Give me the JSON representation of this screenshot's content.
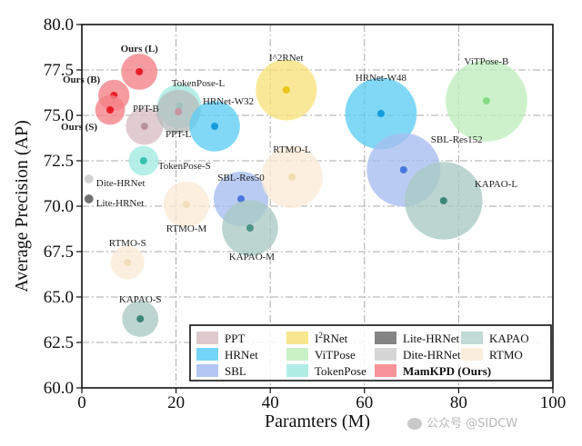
{
  "chart_data": {
    "type": "scatter",
    "subtype": "bubble",
    "title": "",
    "xlabel": "Paramters (M)",
    "ylabel": "Average Precision (AP)",
    "xlim": [
      0,
      100
    ],
    "ylim": [
      60.0,
      80.0
    ],
    "xticks": [
      "0",
      "20",
      "40",
      "60",
      "80",
      "100"
    ],
    "yticks": [
      "60.0",
      "62.5",
      "65.0",
      "67.5",
      "70.0",
      "72.5",
      "75.0",
      "77.5",
      "80.0"
    ],
    "grid": true,
    "legend_position": "lower-right",
    "legend": [
      {
        "name": "PPT",
        "color": "#d9bfc4"
      },
      {
        "name": "HRNet",
        "color": "#5ccdf3"
      },
      {
        "name": "SBL",
        "color": "#a7bdf0"
      },
      {
        "name": "I2RNet",
        "color": "#f7e27a"
      },
      {
        "name": "ViTPose",
        "color": "#bfeebd"
      },
      {
        "name": "TokenPose",
        "color": "#a2ebe1"
      },
      {
        "name": "Lite-HRNet",
        "color": "#6e6e6e"
      },
      {
        "name": "Dite-HRNet",
        "color": "#cfcfcf"
      },
      {
        "name": "MamKPD (Ours)",
        "color": "#f48087",
        "bold": true
      },
      {
        "name": "KAPAO",
        "color": "#b6d3cf"
      },
      {
        "name": "RTMO",
        "color": "#fbebd6"
      }
    ],
    "points": [
      {
        "label": "Ours (L)",
        "family": "MamKPD (Ours)",
        "x": 12.2,
        "y": 77.4,
        "size": 12,
        "color": "#f48087",
        "dot": "#e8101c",
        "bold": true
      },
      {
        "label": "Ours (B)",
        "family": "MamKPD (Ours)",
        "x": 6.8,
        "y": 76.1,
        "size": 8,
        "color": "#f48087",
        "dot": "#e8101c",
        "bold": true
      },
      {
        "label": "Ours (S)",
        "family": "MamKPD (Ours)",
        "x": 6.0,
        "y": 75.3,
        "size": 7,
        "color": "#f48087",
        "dot": "#e8101c",
        "bold": true
      },
      {
        "label": "PPT-B",
        "family": "PPT",
        "x": 13.3,
        "y": 74.4,
        "size": 13,
        "color": "#d9bfc4",
        "dot": "#b78c95"
      },
      {
        "label": "TokenPose-L",
        "family": "TokenPose",
        "x": 20.7,
        "y": 75.5,
        "size": 20,
        "color": "#a2ebe1",
        "dot": "#3ecfc0"
      },
      {
        "label": "PPT-L",
        "family": "PPT",
        "x": 20.5,
        "y": 75.2,
        "size": 20,
        "color": "#b8bdbc",
        "dot": "#c98f9b"
      },
      {
        "label": "HRNet-W32",
        "family": "HRNet",
        "x": 28.2,
        "y": 74.4,
        "size": 28,
        "color": "#5ccdf3",
        "dot": "#0a96dc"
      },
      {
        "label": "I^2RNet",
        "family": "I2RNet",
        "x": 43.4,
        "y": 76.4,
        "size": 44,
        "color": "#f7e27a",
        "dot": "#e9c20d"
      },
      {
        "label": "HRNet-W48",
        "family": "HRNet",
        "x": 63.5,
        "y": 75.1,
        "size": 64,
        "color": "#5ccdf3",
        "dot": "#0a96dc"
      },
      {
        "label": "ViTPose-B",
        "family": "ViTPose",
        "x": 85.9,
        "y": 75.8,
        "size": 86,
        "color": "#bfeebd",
        "dot": "#7fd77e"
      },
      {
        "label": "TokenPose-S",
        "family": "TokenPose",
        "x": 13.1,
        "y": 72.5,
        "size": 7,
        "color": "#a2ebe1",
        "dot": "#2bbfa8"
      },
      {
        "label": "Dite-HRNet",
        "family": "Dite-HRNet",
        "x": 1.5,
        "y": 71.5,
        "size": 1,
        "color": "#cfcfcf",
        "dot": "#cfcfcf"
      },
      {
        "label": "Lite-HRNet",
        "family": "Lite-HRNet",
        "x": 1.5,
        "y": 70.4,
        "size": 1,
        "color": "#6e6e6e",
        "dot": "#6e6e6e"
      },
      {
        "label": "RTMO-M",
        "family": "RTMO",
        "x": 22.2,
        "y": 70.1,
        "size": 22,
        "color": "#fbebd6",
        "dot": "#f1dcb5"
      },
      {
        "label": "SBL-Res50",
        "family": "SBL",
        "x": 33.8,
        "y": 70.4,
        "size": 34,
        "color": "#a7bdf0",
        "dot": "#3b6fd9"
      },
      {
        "label": "KAPAO-M",
        "family": "KAPAO",
        "x": 35.7,
        "y": 68.8,
        "size": 36,
        "color": "#a9c9c4",
        "dot": "#3d8d80"
      },
      {
        "label": "RTMO-L",
        "family": "RTMO",
        "x": 44.6,
        "y": 71.6,
        "size": 45,
        "color": "#fbebd6",
        "dot": "#efd9ab"
      },
      {
        "label": "SBL-Res152",
        "family": "SBL",
        "x": 68.3,
        "y": 72.0,
        "size": 68,
        "color": "#a7bdf0",
        "dot": "#3b6fd9"
      },
      {
        "label": "KAPAO-L",
        "family": "KAPAO",
        "x": 76.8,
        "y": 70.3,
        "size": 77,
        "color": "#a9c9c4",
        "dot": "#2f7d6f"
      },
      {
        "label": "RTMO-S",
        "family": "RTMO",
        "x": 9.7,
        "y": 66.9,
        "size": 10,
        "color": "#fbebd6",
        "dot": "#f1dcb5"
      },
      {
        "label": "KAPAO-S",
        "family": "KAPAO",
        "x": 12.4,
        "y": 63.8,
        "size": 12,
        "color": "#a9c9c4",
        "dot": "#2f7d6f"
      }
    ]
  },
  "watermark": {
    "text": "公众号 @SIDCW"
  }
}
